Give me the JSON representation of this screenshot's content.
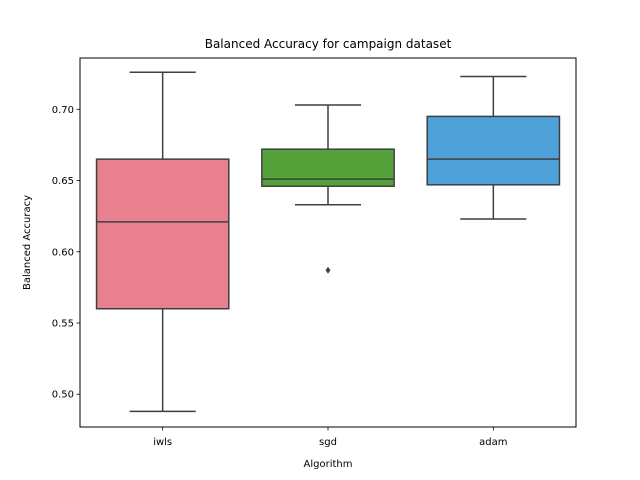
{
  "chart_data": {
    "type": "box",
    "title": "Balanced Accuracy for campaign dataset",
    "xlabel": "Algorithm",
    "ylabel": "Balanced Accuracy",
    "ylim": [
      0.477,
      0.736
    ],
    "yticks": [
      0.5,
      0.55,
      0.6,
      0.65,
      0.7
    ],
    "ytick_labels": [
      "0.50",
      "0.55",
      "0.60",
      "0.65",
      "0.70"
    ],
    "categories": [
      "iwls",
      "sgd",
      "adam"
    ],
    "boxes": [
      {
        "name": "iwls",
        "color": "#e8808f",
        "whisker_low": 0.488,
        "q1": 0.56,
        "median": 0.621,
        "q3": 0.665,
        "whisker_high": 0.726,
        "outliers": []
      },
      {
        "name": "sgd",
        "color": "#55a23a",
        "whisker_low": 0.633,
        "q1": 0.646,
        "median": 0.651,
        "q3": 0.672,
        "whisker_high": 0.703,
        "outliers": [
          0.587
        ]
      },
      {
        "name": "adam",
        "color": "#4fa1da",
        "whisker_low": 0.623,
        "q1": 0.647,
        "median": 0.665,
        "q3": 0.695,
        "whisker_high": 0.723,
        "outliers": []
      }
    ],
    "grid": false,
    "line_color": "#3f3f3f"
  }
}
